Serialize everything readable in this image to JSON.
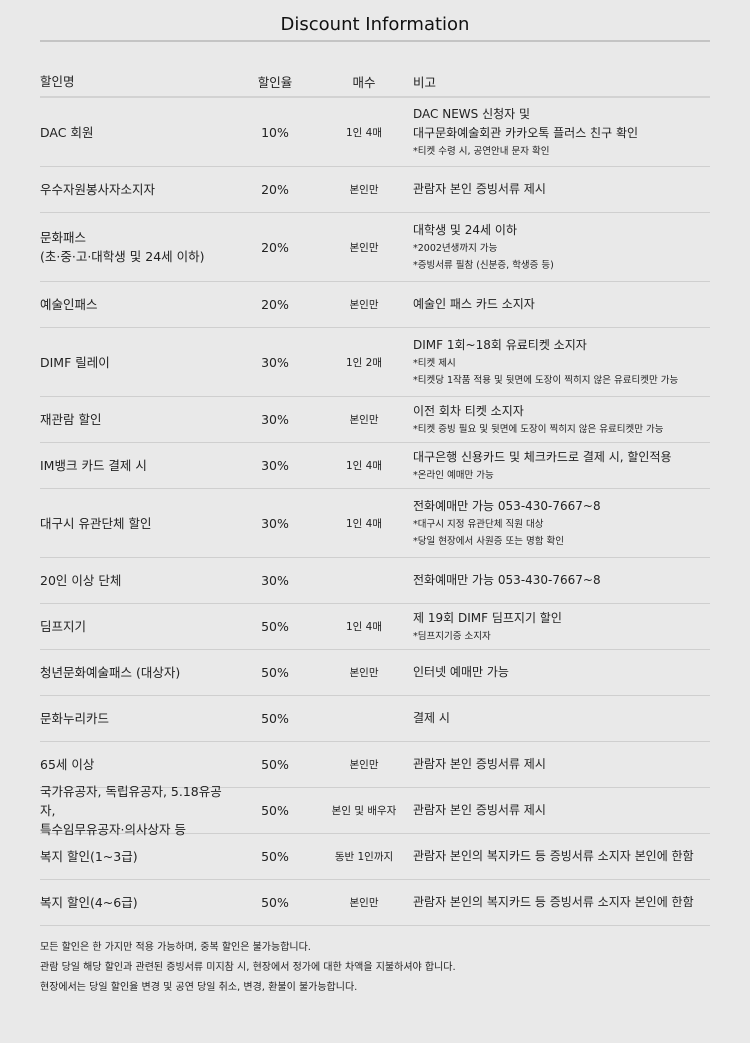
{
  "title": "Discount Information",
  "headers": {
    "name": "할인명",
    "rate": "할인율",
    "count": "매수",
    "note": "비고"
  },
  "rows": [
    {
      "name": [
        "DAC 회원"
      ],
      "rate": "10%",
      "count": "1인 4매",
      "note": [
        "DAC NEWS 신청자 및",
        "대구문화예술회관 카카오톡 플러스 친구 확인"
      ],
      "sub": [
        "*티켓 수령 시, 공연안내 문자 확인"
      ]
    },
    {
      "name": [
        "우수자원봉사자소지자"
      ],
      "rate": "20%",
      "count": "본인만",
      "note": [
        "관람자 본인 증빙서류 제시"
      ],
      "sub": []
    },
    {
      "name": [
        "문화패스",
        "(초·중·고·대학생 및 24세 이하)"
      ],
      "rate": "20%",
      "count": "본인만",
      "note": [
        "대학생 및 24세 이하"
      ],
      "sub": [
        "*2002년생까지 가능",
        "*증빙서류 필참 (신분증, 학생증 등)"
      ]
    },
    {
      "name": [
        "예술인패스"
      ],
      "rate": "20%",
      "count": "본인만",
      "note": [
        "예술인 패스 카드 소지자"
      ],
      "sub": []
    },
    {
      "name": [
        "DIMF 릴레이"
      ],
      "rate": "30%",
      "count": "1인 2매",
      "note": [
        "DIMF 1회~18회 유료티켓 소지자"
      ],
      "sub": [
        "*티켓 제시",
        "*티켓당 1작품 적용 및 뒷면에 도장이 찍히지 않은 유료티켓만 가능"
      ]
    },
    {
      "name": [
        "재관람 할인"
      ],
      "rate": "30%",
      "count": "본인만",
      "note": [
        "이전 회차 티켓 소지자"
      ],
      "sub": [
        "*티켓 증빙 필요 및 뒷면에 도장이 찍히지 않은 유료티켓만 가능"
      ]
    },
    {
      "name": [
        "IM뱅크 카드 결제 시"
      ],
      "rate": "30%",
      "count": "1인 4매",
      "note": [
        "대구은행 신용카드 및 체크카드로 결제 시, 할인적용"
      ],
      "sub": [
        "*온라인 예매만 가능"
      ]
    },
    {
      "name": [
        "대구시 유관단체 할인"
      ],
      "rate": "30%",
      "count": "1인 4매",
      "note": [
        "전화예매만 가능 053-430-7667~8"
      ],
      "sub": [
        "*대구시 지정 유관단체 직원 대상",
        "*당일 현장에서 사원증 또는 명함 확인"
      ]
    },
    {
      "name": [
        "20인 이상 단체"
      ],
      "rate": "30%",
      "count": "",
      "note": [
        "전화예매만 가능 053-430-7667~8"
      ],
      "sub": []
    },
    {
      "name": [
        "딤프지기"
      ],
      "rate": "50%",
      "count": "1인 4매",
      "note": [
        "제 19회 DIMF 딤프지기 할인"
      ],
      "sub": [
        "*딤프지기증 소지자"
      ]
    },
    {
      "name": [
        "청년문화예술패스 (대상자)"
      ],
      "rate": "50%",
      "count": "본인만",
      "note": [
        "인터넷 예매만 가능"
      ],
      "sub": []
    },
    {
      "name": [
        "문화누리카드"
      ],
      "rate": "50%",
      "count": "",
      "note": [
        "결제 시"
      ],
      "sub": []
    },
    {
      "name": [
        "65세 이상"
      ],
      "rate": "50%",
      "count": "본인만",
      "note": [
        "관람자 본인 증빙서류 제시"
      ],
      "sub": []
    },
    {
      "name": [
        "국가유공자, 독립유공자, 5.18유공자,",
        "특수임무유공자·의사상자 등"
      ],
      "rate": "50%",
      "count": "본인 및 배우자",
      "note": [
        "관람자 본인 증빙서류 제시"
      ],
      "sub": []
    },
    {
      "name": [
        "복지 할인(1~3급)"
      ],
      "rate": "50%",
      "count": "동반 1인까지",
      "note": [
        "관람자 본인의 복지카드 등 증빙서류 소지자 본인에 한함"
      ],
      "sub": []
    },
    {
      "name": [
        "복지 할인(4~6급)"
      ],
      "rate": "50%",
      "count": "본인만",
      "note": [
        "관람자 본인의 복지카드 등 증빙서류 소지자 본인에 한함"
      ],
      "sub": []
    }
  ],
  "footer": [
    "모든 할인은 한 가지만 적용 가능하며, 중복 할인은 불가능합니다.",
    "관람 당일 해당 할인과 관련된 증빙서류 미지참 시, 현장에서 정가에 대한 차액을 지불하셔야 합니다.",
    "현장에서는 당일 할인율 변경 및 공연 당일 취소, 변경, 환불이 불가능합니다."
  ]
}
